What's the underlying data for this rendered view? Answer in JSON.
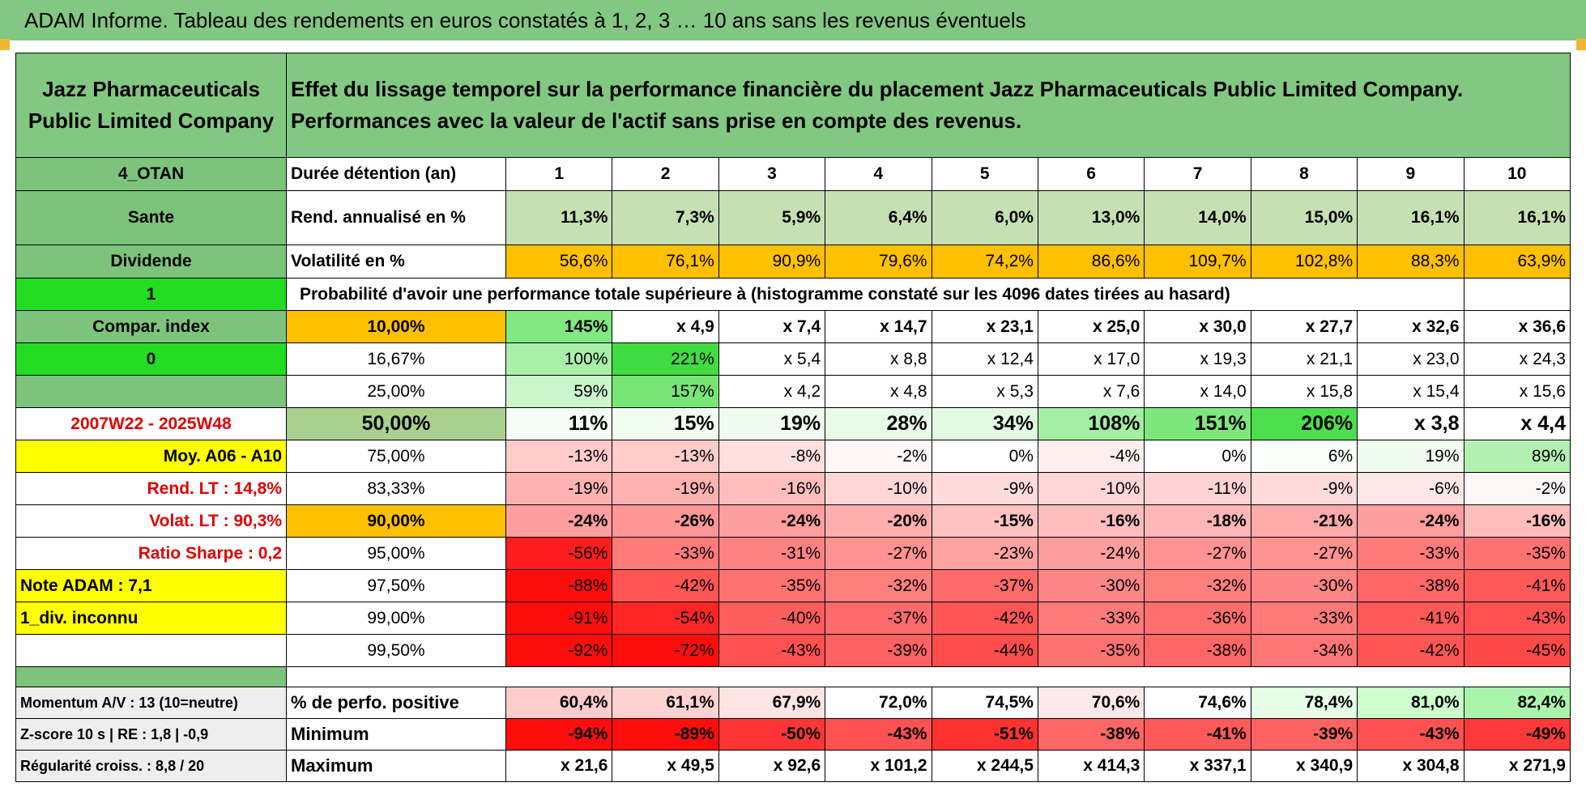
{
  "header": {
    "title": "ADAM Informe. Tableau des rendements en euros constatés à 1, 2, 3 … 10 ans sans les revenus éventuels"
  },
  "table": {
    "company": "Jazz Pharmaceuticals Public Limited Company",
    "description": "Effet du lissage temporel sur la performance financière du placement Jazz Pharmaceuticals Public Limited Company. Performances avec la valeur de l'actif sans prise en compte des revenus.",
    "rows": [
      [
        "4_OTAN",
        "Durée détention (an)",
        1,
        2,
        3,
        4,
        5,
        6,
        7,
        8,
        9,
        10
      ],
      [
        "Sante",
        "Rend. annualisé en %",
        "11,3%",
        "7,3%",
        "5,9%",
        "6,4%",
        "6,0%",
        "13,0%",
        "14,0%",
        "15,0%",
        "16,1%",
        "16,1%"
      ],
      [
        "Dividende",
        "Volatilité en %",
        "56,6%",
        "76,1%",
        "90,9%",
        "79,6%",
        "74,2%",
        "86,6%",
        "109,7%",
        "102,8%",
        "88,3%",
        "63,9%"
      ],
      [
        "1",
        "Probabilité d'avoir une performance totale supérieure à (histogramme constaté sur les 4096 dates tirées au hasard)"
      ],
      [
        "Compar. index",
        "10,00%",
        "145%",
        "x 4,9",
        "x 7,4",
        "x 14,7",
        "x 23,1",
        "x 25,0",
        "x 30,0",
        "x 27,7",
        "x 32,6",
        "x 36,6"
      ],
      [
        "0",
        "16,67%",
        "100%",
        "221%",
        "x 5,4",
        "x 8,8",
        "x 12,4",
        "x 17,0",
        "x 19,3",
        "x 21,1",
        "x 23,0",
        "x 24,3"
      ],
      [
        null,
        "25,00%",
        "59%",
        "157%",
        "x 4,2",
        "x 4,8",
        "x 5,3",
        "x 7,6",
        "x 14,0",
        "x 15,8",
        "x 15,4",
        "x 15,6"
      ],
      [
        "2007W22 - 2025W48",
        "50,00%",
        "11%",
        "15%",
        "19%",
        "28%",
        "34%",
        "108%",
        "151%",
        "206%",
        "x 3,8",
        "x 4,4"
      ],
      [
        "Moy. A06 - A10",
        "75,00%",
        "-13%",
        "-13%",
        "-8%",
        "-2%",
        "0%",
        "-4%",
        "0%",
        "6%",
        "19%",
        "89%"
      ],
      [
        "Rend. LT :    14,8%",
        "83,33%",
        "-19%",
        "-19%",
        "-16%",
        "-10%",
        "-9%",
        "-10%",
        "-11%",
        "-9%",
        "-6%",
        "-2%"
      ],
      [
        "Volat. LT :    90,3%",
        "90,00%",
        "-24%",
        "-26%",
        "-24%",
        "-20%",
        "-15%",
        "-16%",
        "-18%",
        "-21%",
        "-24%",
        "-16%"
      ],
      [
        "Ratio Sharpe :     0,2",
        "95,00%",
        "-56%",
        "-33%",
        "-31%",
        "-27%",
        "-23%",
        "-24%",
        "-27%",
        "-27%",
        "-33%",
        "-35%"
      ],
      [
        "Note ADAM : 7,1",
        "97,50%",
        "-88%",
        "-42%",
        "-35%",
        "-32%",
        "-37%",
        "-30%",
        "-32%",
        "-30%",
        "-38%",
        "-41%"
      ],
      [
        "1_div. inconnu",
        "99,00%",
        "-91%",
        "-54%",
        "-40%",
        "-37%",
        "-42%",
        "-33%",
        "-36%",
        "-33%",
        "-41%",
        "-43%"
      ],
      [
        null,
        "99,50%",
        "-92%",
        "-72%",
        "-43%",
        "-39%",
        "-44%",
        "-35%",
        "-38%",
        "-34%",
        "-42%",
        "-45%"
      ]
    ],
    "summary_rows": [
      [
        "Momentum A/V : 13 (10=neutre)",
        "% de perfo. positive",
        "60,4%",
        "61,1%",
        "67,9%",
        "72,0%",
        "74,5%",
        "70,6%",
        "74,6%",
        "78,4%",
        "81,0%",
        "82,4%"
      ],
      [
        "Z-score 10 s | RE : 1,8 | -0,9",
        "Minimum",
        "-94%",
        "-89%",
        "-50%",
        "-43%",
        "-51%",
        "-38%",
        "-41%",
        "-39%",
        "-43%",
        "-49%"
      ],
      [
        "Régularité croiss. : 8,8 / 20",
        "Maximum",
        "x 21,6",
        "x 49,5",
        "x 92,6",
        "x 101,2",
        "x 244,5",
        "x 414,3",
        "x 337,1",
        "x 340,9",
        "x 304,8",
        "x 271,9"
      ]
    ]
  }
}
